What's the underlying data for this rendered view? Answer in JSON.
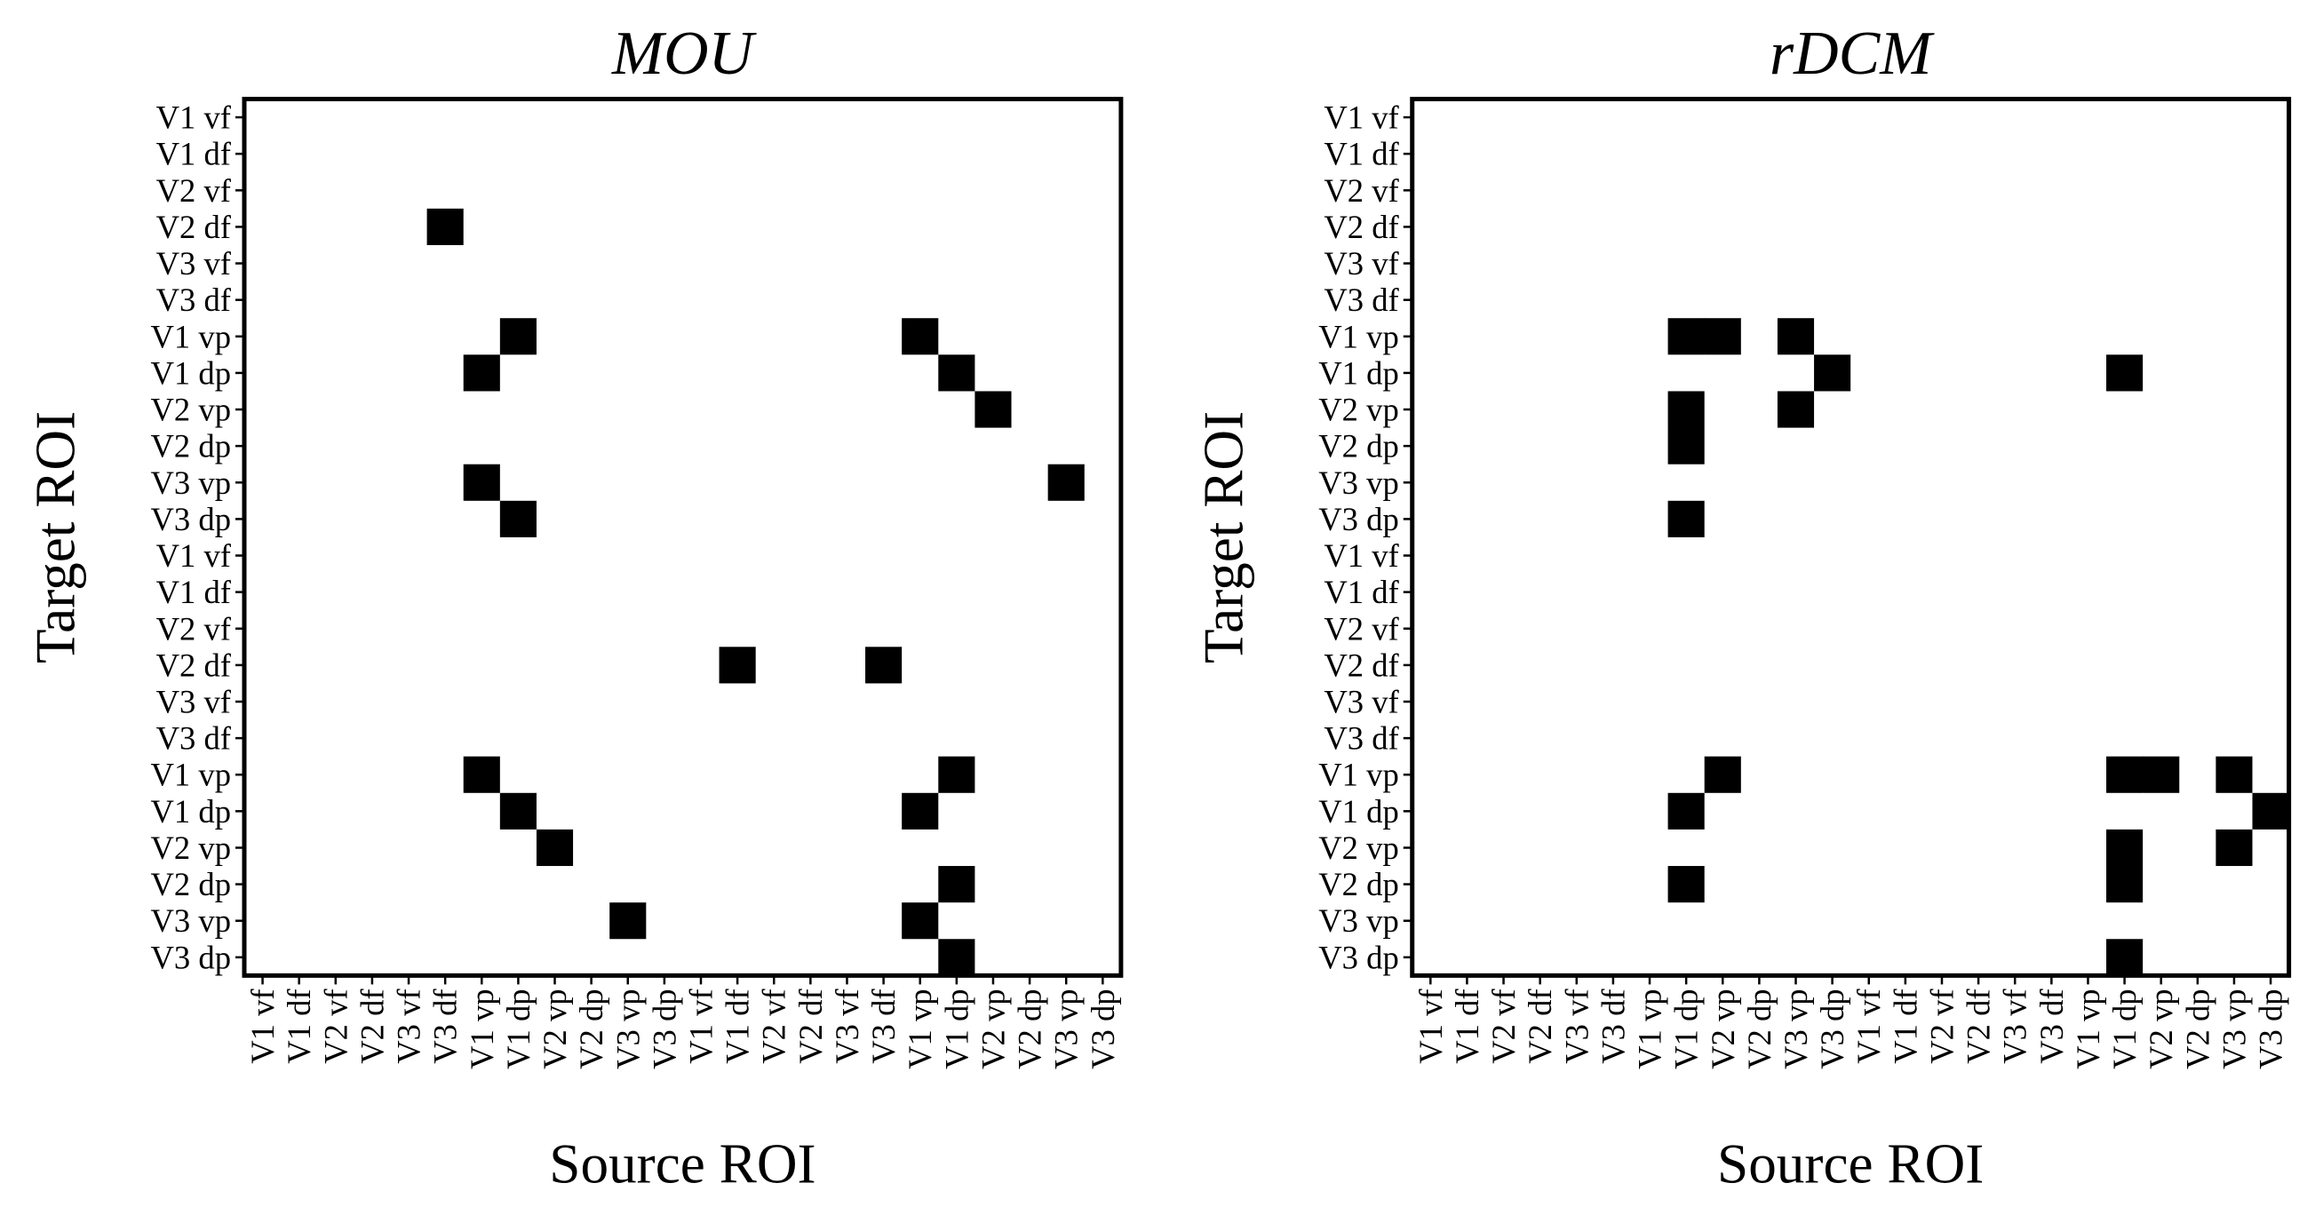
{
  "chart_data": [
    {
      "type": "heatmap",
      "title": "MOU",
      "xlabel": "Source ROI",
      "ylabel": "Target ROI",
      "x_categories": [
        "V1 vf",
        "V1 df",
        "V2 vf",
        "V2 df",
        "V3 vf",
        "V3 df",
        "V1 vp",
        "V1 dp",
        "V2 vp",
        "V2 dp",
        "V3 vp",
        "V3 dp",
        "V1 vf",
        "V1 df",
        "V2 vf",
        "V2 df",
        "V3 vf",
        "V3 df",
        "V1 vp",
        "V1 dp",
        "V2 vp",
        "V2 dp",
        "V3 vp",
        "V3 dp"
      ],
      "y_categories": [
        "V1 vf",
        "V1 df",
        "V2 vf",
        "V2 df",
        "V3 vf",
        "V3 df",
        "V1 vp",
        "V1 dp",
        "V2 vp",
        "V2 dp",
        "V3 vp",
        "V3 dp",
        "V1 vf",
        "V1 df",
        "V2 vf",
        "V2 df",
        "V3 vf",
        "V3 df",
        "V1 vp",
        "V1 dp",
        "V2 vp",
        "V2 dp",
        "V3 vp",
        "V3 dp"
      ],
      "colors": [
        "#ffffff",
        "#000000"
      ],
      "values": [
        [
          0,
          0,
          0,
          0,
          0,
          0,
          0,
          0,
          0,
          0,
          0,
          0,
          0,
          0,
          0,
          0,
          0,
          0,
          0,
          0,
          0,
          0,
          0,
          0
        ],
        [
          0,
          0,
          0,
          0,
          0,
          0,
          0,
          0,
          0,
          0,
          0,
          0,
          0,
          0,
          0,
          0,
          0,
          0,
          0,
          0,
          0,
          0,
          0,
          0
        ],
        [
          0,
          0,
          0,
          0,
          0,
          0,
          0,
          0,
          0,
          0,
          0,
          0,
          0,
          0,
          0,
          0,
          0,
          0,
          0,
          0,
          0,
          0,
          0,
          0
        ],
        [
          0,
          0,
          0,
          0,
          0,
          1,
          0,
          0,
          0,
          0,
          0,
          0,
          0,
          0,
          0,
          0,
          0,
          0,
          0,
          0,
          0,
          0,
          0,
          0
        ],
        [
          0,
          0,
          0,
          0,
          0,
          0,
          0,
          0,
          0,
          0,
          0,
          0,
          0,
          0,
          0,
          0,
          0,
          0,
          0,
          0,
          0,
          0,
          0,
          0
        ],
        [
          0,
          0,
          0,
          0,
          0,
          0,
          0,
          0,
          0,
          0,
          0,
          0,
          0,
          0,
          0,
          0,
          0,
          0,
          0,
          0,
          0,
          0,
          0,
          0
        ],
        [
          0,
          0,
          0,
          0,
          0,
          0,
          0,
          1,
          0,
          0,
          0,
          0,
          0,
          0,
          0,
          0,
          0,
          0,
          1,
          0,
          0,
          0,
          0,
          0
        ],
        [
          0,
          0,
          0,
          0,
          0,
          0,
          1,
          0,
          0,
          0,
          0,
          0,
          0,
          0,
          0,
          0,
          0,
          0,
          0,
          1,
          0,
          0,
          0,
          0
        ],
        [
          0,
          0,
          0,
          0,
          0,
          0,
          0,
          0,
          0,
          0,
          0,
          0,
          0,
          0,
          0,
          0,
          0,
          0,
          0,
          0,
          1,
          0,
          0,
          0
        ],
        [
          0,
          0,
          0,
          0,
          0,
          0,
          0,
          0,
          0,
          0,
          0,
          0,
          0,
          0,
          0,
          0,
          0,
          0,
          0,
          0,
          0,
          0,
          0,
          0
        ],
        [
          0,
          0,
          0,
          0,
          0,
          0,
          1,
          0,
          0,
          0,
          0,
          0,
          0,
          0,
          0,
          0,
          0,
          0,
          0,
          0,
          0,
          0,
          1,
          0
        ],
        [
          0,
          0,
          0,
          0,
          0,
          0,
          0,
          1,
          0,
          0,
          0,
          0,
          0,
          0,
          0,
          0,
          0,
          0,
          0,
          0,
          0,
          0,
          0,
          0
        ],
        [
          0,
          0,
          0,
          0,
          0,
          0,
          0,
          0,
          0,
          0,
          0,
          0,
          0,
          0,
          0,
          0,
          0,
          0,
          0,
          0,
          0,
          0,
          0,
          0
        ],
        [
          0,
          0,
          0,
          0,
          0,
          0,
          0,
          0,
          0,
          0,
          0,
          0,
          0,
          0,
          0,
          0,
          0,
          0,
          0,
          0,
          0,
          0,
          0,
          0
        ],
        [
          0,
          0,
          0,
          0,
          0,
          0,
          0,
          0,
          0,
          0,
          0,
          0,
          0,
          0,
          0,
          0,
          0,
          0,
          0,
          0,
          0,
          0,
          0,
          0
        ],
        [
          0,
          0,
          0,
          0,
          0,
          0,
          0,
          0,
          0,
          0,
          0,
          0,
          0,
          1,
          0,
          0,
          0,
          1,
          0,
          0,
          0,
          0,
          0,
          0
        ],
        [
          0,
          0,
          0,
          0,
          0,
          0,
          0,
          0,
          0,
          0,
          0,
          0,
          0,
          0,
          0,
          0,
          0,
          0,
          0,
          0,
          0,
          0,
          0,
          0
        ],
        [
          0,
          0,
          0,
          0,
          0,
          0,
          0,
          0,
          0,
          0,
          0,
          0,
          0,
          0,
          0,
          0,
          0,
          0,
          0,
          0,
          0,
          0,
          0,
          0
        ],
        [
          0,
          0,
          0,
          0,
          0,
          0,
          1,
          0,
          0,
          0,
          0,
          0,
          0,
          0,
          0,
          0,
          0,
          0,
          0,
          1,
          0,
          0,
          0,
          0
        ],
        [
          0,
          0,
          0,
          0,
          0,
          0,
          0,
          1,
          0,
          0,
          0,
          0,
          0,
          0,
          0,
          0,
          0,
          0,
          1,
          0,
          0,
          0,
          0,
          0
        ],
        [
          0,
          0,
          0,
          0,
          0,
          0,
          0,
          0,
          1,
          0,
          0,
          0,
          0,
          0,
          0,
          0,
          0,
          0,
          0,
          0,
          0,
          0,
          0,
          0
        ],
        [
          0,
          0,
          0,
          0,
          0,
          0,
          0,
          0,
          0,
          0,
          0,
          0,
          0,
          0,
          0,
          0,
          0,
          0,
          0,
          1,
          0,
          0,
          0,
          0
        ],
        [
          0,
          0,
          0,
          0,
          0,
          0,
          0,
          0,
          0,
          0,
          1,
          0,
          0,
          0,
          0,
          0,
          0,
          0,
          1,
          0,
          0,
          0,
          0,
          0
        ],
        [
          0,
          0,
          0,
          0,
          0,
          0,
          0,
          0,
          0,
          0,
          0,
          0,
          0,
          0,
          0,
          0,
          0,
          0,
          0,
          1,
          0,
          0,
          0,
          0
        ]
      ]
    },
    {
      "type": "heatmap",
      "title": "rDCM",
      "xlabel": "Source ROI",
      "ylabel": "Target ROI",
      "x_categories": [
        "V1 vf",
        "V1 df",
        "V2 vf",
        "V2 df",
        "V3 vf",
        "V3 df",
        "V1 vp",
        "V1 dp",
        "V2 vp",
        "V2 dp",
        "V3 vp",
        "V3 dp",
        "V1 vf",
        "V1 df",
        "V2 vf",
        "V2 df",
        "V3 vf",
        "V3 df",
        "V1 vp",
        "V1 dp",
        "V2 vp",
        "V2 dp",
        "V3 vp",
        "V3 dp"
      ],
      "y_categories": [
        "V1 vf",
        "V1 df",
        "V2 vf",
        "V2 df",
        "V3 vf",
        "V3 df",
        "V1 vp",
        "V1 dp",
        "V2 vp",
        "V2 dp",
        "V3 vp",
        "V3 dp",
        "V1 vf",
        "V1 df",
        "V2 vf",
        "V2 df",
        "V3 vf",
        "V3 df",
        "V1 vp",
        "V1 dp",
        "V2 vp",
        "V2 dp",
        "V3 vp",
        "V3 dp"
      ],
      "colors": [
        "#ffffff",
        "#000000"
      ],
      "values": [
        [
          0,
          0,
          0,
          0,
          0,
          0,
          0,
          0,
          0,
          0,
          0,
          0,
          0,
          0,
          0,
          0,
          0,
          0,
          0,
          0,
          0,
          0,
          0,
          0
        ],
        [
          0,
          0,
          0,
          0,
          0,
          0,
          0,
          0,
          0,
          0,
          0,
          0,
          0,
          0,
          0,
          0,
          0,
          0,
          0,
          0,
          0,
          0,
          0,
          0
        ],
        [
          0,
          0,
          0,
          0,
          0,
          0,
          0,
          0,
          0,
          0,
          0,
          0,
          0,
          0,
          0,
          0,
          0,
          0,
          0,
          0,
          0,
          0,
          0,
          0
        ],
        [
          0,
          0,
          0,
          0,
          0,
          0,
          0,
          0,
          0,
          0,
          0,
          0,
          0,
          0,
          0,
          0,
          0,
          0,
          0,
          0,
          0,
          0,
          0,
          0
        ],
        [
          0,
          0,
          0,
          0,
          0,
          0,
          0,
          0,
          0,
          0,
          0,
          0,
          0,
          0,
          0,
          0,
          0,
          0,
          0,
          0,
          0,
          0,
          0,
          0
        ],
        [
          0,
          0,
          0,
          0,
          0,
          0,
          0,
          0,
          0,
          0,
          0,
          0,
          0,
          0,
          0,
          0,
          0,
          0,
          0,
          0,
          0,
          0,
          0,
          0
        ],
        [
          0,
          0,
          0,
          0,
          0,
          0,
          0,
          1,
          1,
          0,
          1,
          0,
          0,
          0,
          0,
          0,
          0,
          0,
          0,
          0,
          0,
          0,
          0,
          0
        ],
        [
          0,
          0,
          0,
          0,
          0,
          0,
          0,
          0,
          0,
          0,
          0,
          1,
          0,
          0,
          0,
          0,
          0,
          0,
          0,
          1,
          0,
          0,
          0,
          0
        ],
        [
          0,
          0,
          0,
          0,
          0,
          0,
          0,
          1,
          0,
          0,
          1,
          0,
          0,
          0,
          0,
          0,
          0,
          0,
          0,
          0,
          0,
          0,
          0,
          0
        ],
        [
          0,
          0,
          0,
          0,
          0,
          0,
          0,
          1,
          0,
          0,
          0,
          0,
          0,
          0,
          0,
          0,
          0,
          0,
          0,
          0,
          0,
          0,
          0,
          0
        ],
        [
          0,
          0,
          0,
          0,
          0,
          0,
          0,
          0,
          0,
          0,
          0,
          0,
          0,
          0,
          0,
          0,
          0,
          0,
          0,
          0,
          0,
          0,
          0,
          0
        ],
        [
          0,
          0,
          0,
          0,
          0,
          0,
          0,
          1,
          0,
          0,
          0,
          0,
          0,
          0,
          0,
          0,
          0,
          0,
          0,
          0,
          0,
          0,
          0,
          0
        ],
        [
          0,
          0,
          0,
          0,
          0,
          0,
          0,
          0,
          0,
          0,
          0,
          0,
          0,
          0,
          0,
          0,
          0,
          0,
          0,
          0,
          0,
          0,
          0,
          0
        ],
        [
          0,
          0,
          0,
          0,
          0,
          0,
          0,
          0,
          0,
          0,
          0,
          0,
          0,
          0,
          0,
          0,
          0,
          0,
          0,
          0,
          0,
          0,
          0,
          0
        ],
        [
          0,
          0,
          0,
          0,
          0,
          0,
          0,
          0,
          0,
          0,
          0,
          0,
          0,
          0,
          0,
          0,
          0,
          0,
          0,
          0,
          0,
          0,
          0,
          0
        ],
        [
          0,
          0,
          0,
          0,
          0,
          0,
          0,
          0,
          0,
          0,
          0,
          0,
          0,
          0,
          0,
          0,
          0,
          0,
          0,
          0,
          0,
          0,
          0,
          0
        ],
        [
          0,
          0,
          0,
          0,
          0,
          0,
          0,
          0,
          0,
          0,
          0,
          0,
          0,
          0,
          0,
          0,
          0,
          0,
          0,
          0,
          0,
          0,
          0,
          0
        ],
        [
          0,
          0,
          0,
          0,
          0,
          0,
          0,
          0,
          0,
          0,
          0,
          0,
          0,
          0,
          0,
          0,
          0,
          0,
          0,
          0,
          0,
          0,
          0,
          0
        ],
        [
          0,
          0,
          0,
          0,
          0,
          0,
          0,
          0,
          1,
          0,
          0,
          0,
          0,
          0,
          0,
          0,
          0,
          0,
          0,
          1,
          1,
          0,
          1,
          0
        ],
        [
          0,
          0,
          0,
          0,
          0,
          0,
          0,
          1,
          0,
          0,
          0,
          0,
          0,
          0,
          0,
          0,
          0,
          0,
          0,
          0,
          0,
          0,
          0,
          1
        ],
        [
          0,
          0,
          0,
          0,
          0,
          0,
          0,
          0,
          0,
          0,
          0,
          0,
          0,
          0,
          0,
          0,
          0,
          0,
          0,
          1,
          0,
          0,
          1,
          0
        ],
        [
          0,
          0,
          0,
          0,
          0,
          0,
          0,
          1,
          0,
          0,
          0,
          0,
          0,
          0,
          0,
          0,
          0,
          0,
          0,
          1,
          0,
          0,
          0,
          0
        ],
        [
          0,
          0,
          0,
          0,
          0,
          0,
          0,
          0,
          0,
          0,
          0,
          0,
          0,
          0,
          0,
          0,
          0,
          0,
          0,
          0,
          0,
          0,
          0,
          0
        ],
        [
          0,
          0,
          0,
          0,
          0,
          0,
          0,
          0,
          0,
          0,
          0,
          0,
          0,
          0,
          0,
          0,
          0,
          0,
          0,
          1,
          0,
          0,
          0,
          0
        ]
      ]
    }
  ]
}
